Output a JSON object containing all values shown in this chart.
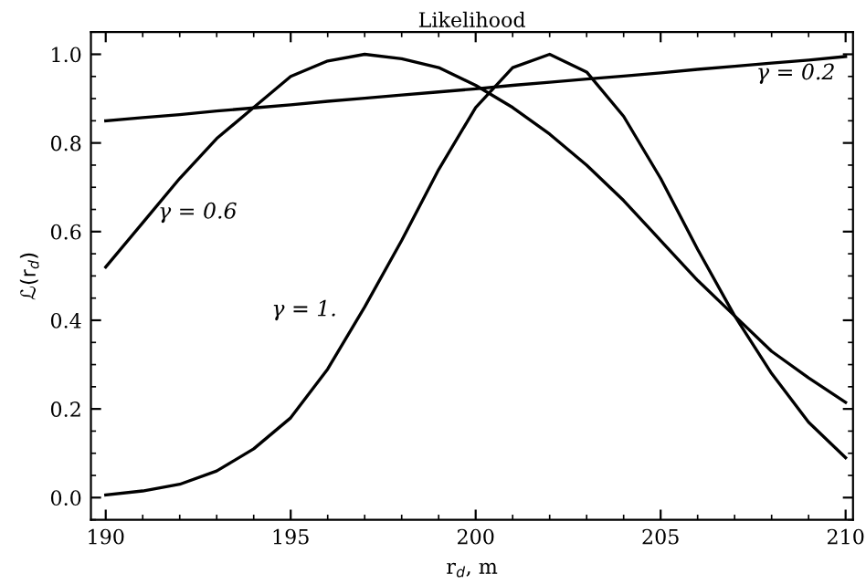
{
  "chart_data": {
    "type": "line",
    "title": "Likelihood",
    "xlabel": "r$_{d}$, m",
    "ylabel": "ℒ(r$_{d}$)",
    "x": [
      190,
      191,
      192,
      193,
      194,
      195,
      196,
      197,
      198,
      199,
      200,
      201,
      202,
      203,
      204,
      205,
      206,
      207,
      208,
      209,
      210
    ],
    "series": [
      {
        "color": "#000000",
        "values": [
          0.85,
          0.857,
          0.864,
          0.872,
          0.879,
          0.886,
          0.894,
          0.901,
          0.908,
          0.915,
          0.922,
          0.93,
          0.937,
          0.944,
          0.951,
          0.958,
          0.966,
          0.973,
          0.98,
          0.987,
          0.995
        ]
      },
      {
        "color": "#000000",
        "values": [
          0.52,
          0.62,
          0.72,
          0.81,
          0.88,
          0.95,
          0.985,
          1.0,
          0.99,
          0.97,
          0.93,
          0.88,
          0.82,
          0.75,
          0.67,
          0.58,
          0.49,
          0.41,
          0.33,
          0.27,
          0.215
        ]
      },
      {
        "color": "#000000",
        "values": [
          0.006,
          0.015,
          0.03,
          0.06,
          0.11,
          0.18,
          0.29,
          0.43,
          0.58,
          0.74,
          0.88,
          0.97,
          1.0,
          0.96,
          0.86,
          0.72,
          0.56,
          0.41,
          0.28,
          0.17,
          0.09
        ]
      }
    ],
    "annotations": [
      "γ = 0.2",
      "γ = 0.6",
      "γ = 1."
    ],
    "xlim": [
      189.6,
      210.2
    ],
    "ylim": [
      -0.05,
      1.05
    ],
    "xticks": [
      190,
      195,
      200,
      205,
      210
    ],
    "yticks": [
      {
        "value": 0,
        "label": "0.0"
      },
      {
        "value": 0.2,
        "label": "0.2"
      },
      {
        "value": 0.4,
        "label": "0.4"
      },
      {
        "value": 0.6,
        "label": "0.6"
      },
      {
        "value": 0.8,
        "label": "0.8"
      },
      {
        "value": 1,
        "label": "1.0"
      }
    ],
    "grid": false,
    "legend": false,
    "marker": "none",
    "line_style": "solid"
  }
}
